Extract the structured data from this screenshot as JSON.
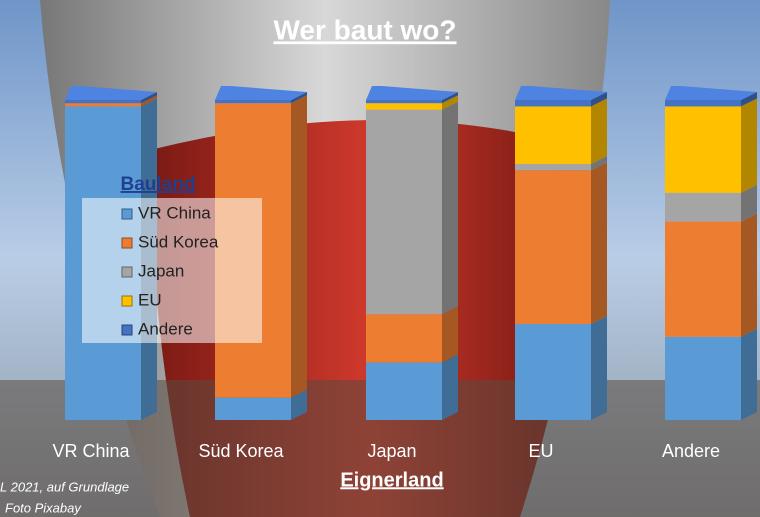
{
  "chart_data": {
    "type": "stacked_bar",
    "title": "Wer baut wo?",
    "x_label": "Eignerland",
    "legend_title": "Bauland",
    "source": [
      "L 2021, auf Grundlage",
      "Foto Pixabay"
    ],
    "categories": [
      "VR China",
      "Süd Korea",
      "Japan",
      "EU",
      "Andere"
    ],
    "series": [
      {
        "name": "VR China",
        "color": "#5b9bd5",
        "values": [
          98,
          7,
          18,
          30,
          26
        ]
      },
      {
        "name": "Süd Korea",
        "color": "#ed7d31",
        "values": [
          1,
          92,
          15,
          48,
          36
        ]
      },
      {
        "name": "Japan",
        "color": "#a5a5a5",
        "values": [
          0,
          0,
          64,
          2,
          9
        ]
      },
      {
        "name": "EU",
        "color": "#ffc000",
        "values": [
          0,
          0,
          2,
          18,
          27
        ]
      },
      {
        "name": "Andere",
        "color": "#4472c4",
        "values": [
          1,
          1,
          1,
          2,
          2
        ]
      }
    ],
    "ylim": [
      0,
      100
    ],
    "legend": "left"
  }
}
